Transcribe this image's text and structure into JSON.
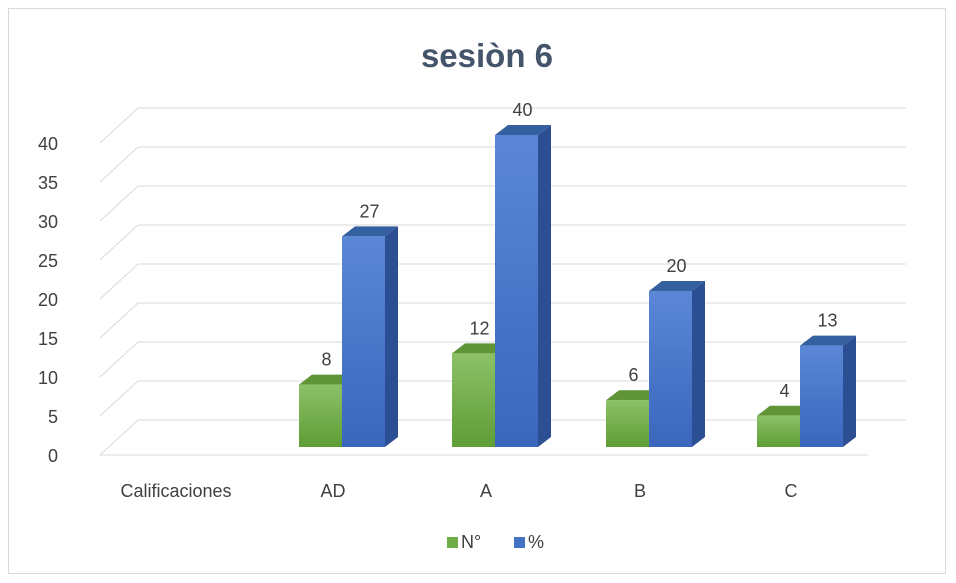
{
  "chart_data": {
    "type": "bar",
    "title": "sesiòn 6",
    "categories": [
      "Calificaciones",
      "AD",
      "A",
      "B",
      "C"
    ],
    "series": [
      {
        "name": "N°",
        "values": [
          null,
          8,
          12,
          6,
          4
        ],
        "color": "#70ad47"
      },
      {
        "name": "%",
        "values": [
          null,
          27,
          40,
          20,
          13
        ],
        "color": "#4472c4"
      }
    ],
    "yticks": [
      "0",
      "5",
      "10",
      "15",
      "20",
      "25",
      "30",
      "35",
      "40"
    ],
    "ylim": [
      0,
      40
    ],
    "grid": true,
    "legend": "bottom",
    "style": "3d-clustered-column"
  }
}
